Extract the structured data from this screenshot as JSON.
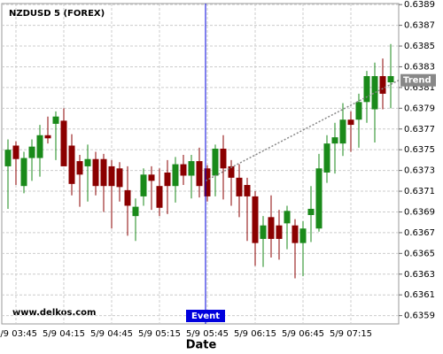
{
  "chart_data": {
    "type": "candlestick",
    "title": "NZDUSD 5 (FOREX)",
    "watermark": "www.delkos.com",
    "x_label": "Date",
    "categories": [
      null,
      "5/9 03:45",
      null,
      null,
      null,
      null,
      null,
      "5/9 04:15",
      null,
      null,
      null,
      null,
      null,
      "5/9 04:45",
      null,
      null,
      null,
      null,
      null,
      "5/9 05:15",
      null,
      null,
      null,
      null,
      null,
      "5/9 05:45",
      null,
      null,
      null,
      null,
      null,
      "5/9 06:15",
      null,
      null,
      null,
      null,
      null,
      "5/9 06:45",
      null,
      null,
      null,
      null,
      null,
      "5/9 07:15",
      null,
      null,
      null,
      null,
      null
    ],
    "open": [
      0.63734,
      0.63754,
      0.63715,
      0.63742,
      0.63742,
      0.63764,
      0.63775,
      0.63778,
      0.63754,
      0.63739,
      0.63734,
      0.63741,
      0.63741,
      0.63734,
      0.63732,
      0.63711,
      0.63686,
      0.63705,
      0.63726,
      0.63715,
      0.63728,
      0.63715,
      0.63736,
      0.63725,
      0.63739,
      0.63732,
      0.63725,
      0.63751,
      0.63734,
      0.63723,
      0.63716,
      0.63705,
      0.63664,
      0.63685,
      0.63677,
      0.63679,
      0.63677,
      0.6366,
      0.63687,
      0.63674,
      0.63728,
      0.63756,
      0.63756,
      0.63779,
      0.63779,
      0.63796,
      0.63789,
      0.63821,
      0.63815
    ],
    "high": [
      0.6376,
      0.63758,
      0.63748,
      0.6376,
      0.63774,
      0.63782,
      0.63787,
      0.6379,
      0.63765,
      0.63745,
      0.63755,
      0.63748,
      0.63746,
      0.6374,
      0.63738,
      0.63734,
      0.63703,
      0.63732,
      0.63734,
      0.63732,
      0.6374,
      0.63743,
      0.63745,
      0.63745,
      0.63752,
      0.63735,
      0.63755,
      0.63764,
      0.6374,
      0.63736,
      0.63723,
      0.6371,
      0.63686,
      0.63706,
      0.63692,
      0.63696,
      0.63683,
      0.63681,
      0.63715,
      0.63746,
      0.63764,
      0.63776,
      0.63795,
      0.63787,
      0.63804,
      0.63826,
      0.63834,
      0.63838,
      0.63852
    ],
    "low": [
      0.63693,
      0.63716,
      0.63708,
      0.6372,
      0.63724,
      0.63756,
      0.6374,
      0.63734,
      0.63706,
      0.63695,
      0.637,
      0.63706,
      0.6369,
      0.63674,
      0.637,
      0.63667,
      0.63662,
      0.63696,
      0.63692,
      0.63686,
      0.63688,
      0.63699,
      0.63716,
      0.63703,
      0.63704,
      0.637,
      0.63705,
      0.63702,
      0.63696,
      0.63685,
      0.63662,
      0.63638,
      0.63637,
      0.63646,
      0.63644,
      0.63654,
      0.63626,
      0.63628,
      0.63661,
      0.63671,
      0.63718,
      0.63727,
      0.63744,
      0.63748,
      0.63752,
      0.63776,
      0.63757,
      0.63789,
      0.6379
    ],
    "close": [
      0.6375,
      0.63741,
      0.63742,
      0.63753,
      0.63764,
      0.63761,
      0.63782,
      0.63734,
      0.63717,
      0.63726,
      0.63741,
      0.63715,
      0.63715,
      0.63715,
      0.63714,
      0.63696,
      0.63695,
      0.63726,
      0.6372,
      0.63694,
      0.63715,
      0.63736,
      0.63725,
      0.63739,
      0.63715,
      0.63705,
      0.63751,
      0.63732,
      0.63723,
      0.63705,
      0.63705,
      0.6366,
      0.63677,
      0.63664,
      0.63664,
      0.63691,
      0.6366,
      0.63674,
      0.63693,
      0.63732,
      0.63756,
      0.63762,
      0.63779,
      0.63774,
      0.63796,
      0.63821,
      0.63821,
      0.63804,
      0.63821
    ],
    "up_color": "#1a8a1a",
    "down_color": "#8b0000",
    "ylim": [
      0.63582,
      0.63891
    ],
    "yticks": [
      0.6359,
      0.6361,
      0.6363,
      0.6365,
      0.6367,
      0.6369,
      0.6371,
      0.6373,
      0.6375,
      0.6377,
      0.6379,
      0.6381,
      0.6383,
      0.6385,
      0.6387,
      0.6389
    ],
    "grid": true,
    "event": {
      "label": "Event",
      "at": "5/9 05:45",
      "color": "#0000dd"
    },
    "trend": {
      "label": "Trend",
      "start": 0.6372,
      "end": 0.63817,
      "color": "#888888"
    }
  }
}
